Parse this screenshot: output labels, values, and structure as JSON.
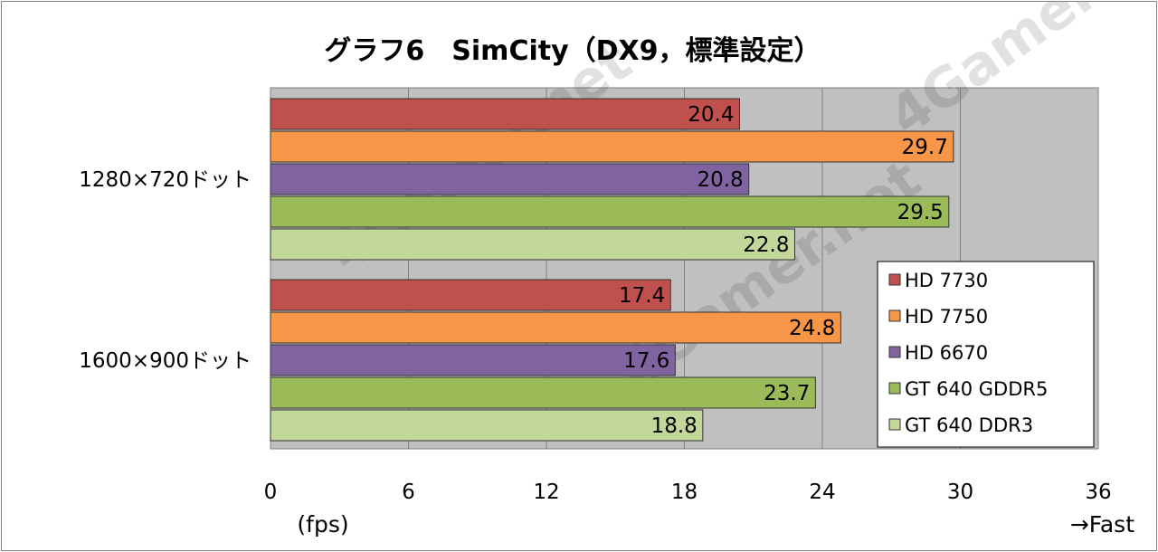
{
  "chart_data": {
    "type": "bar",
    "orientation": "horizontal",
    "title": "グラフ6　SimCity（DX9，標準設定）",
    "categories": [
      "1280×720ドット",
      "1600×900ドット"
    ],
    "series": [
      {
        "name": "HD 7730",
        "color": "#c0504d",
        "values": [
          20.4,
          17.4
        ]
      },
      {
        "name": "HD 7750",
        "color": "#f79646",
        "values": [
          29.7,
          24.8
        ]
      },
      {
        "name": "HD 6670",
        "color": "#8064a2",
        "values": [
          20.8,
          17.6
        ]
      },
      {
        "name": "GT 640 GDDR5",
        "color": "#9bbb59",
        "values": [
          29.5,
          23.7
        ]
      },
      {
        "name": "GT 640 DDR3",
        "color": "#c4d79b",
        "values": [
          22.8,
          18.8
        ]
      }
    ],
    "xlim": [
      0,
      36
    ],
    "xticks": [
      0,
      6,
      12,
      18,
      24,
      30,
      36
    ],
    "xlabel": "(fps)",
    "direction_note": "→Fast",
    "grid": true,
    "legend_position": "bottom-right",
    "plot_background": "#c0c0c0",
    "watermark": "4Gamer.net"
  }
}
